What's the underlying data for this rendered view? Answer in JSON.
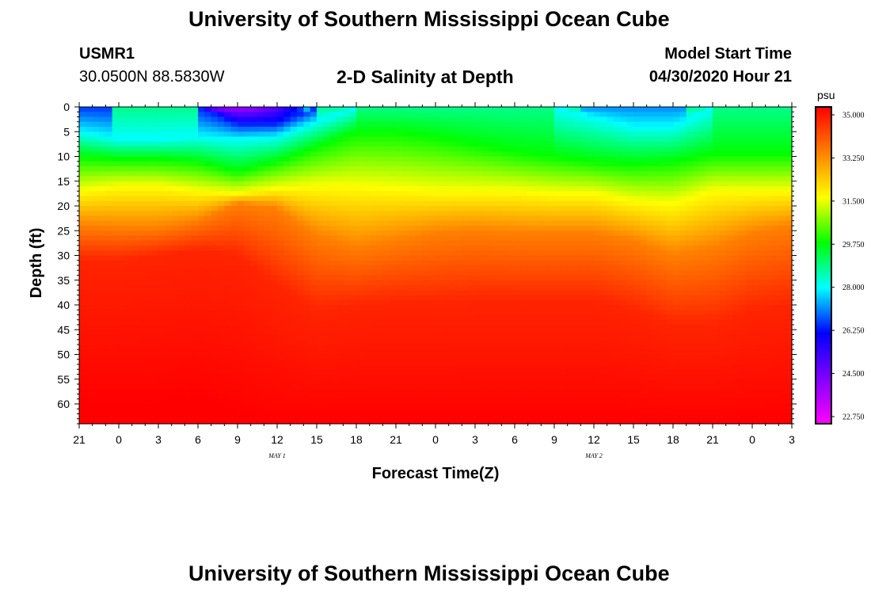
{
  "header": {
    "title": "University of Southern Mississippi Ocean Cube",
    "station": "USMR1",
    "coords": "30.0500N 88.5830W",
    "chart_title": "2-D Salinity at Depth",
    "model_start_label": "Model Start Time",
    "model_start_value": "04/30/2020 Hour 21"
  },
  "footer": {
    "title": "University of Southern Mississippi Ocean Cube"
  },
  "chart_data": {
    "type": "heatmap",
    "title": "2-D Salinity at Depth",
    "xlabel": "Forecast Time(Z)",
    "ylabel": "Depth (ft)",
    "x_ticks": [
      "21",
      "0",
      "3",
      "6",
      "9",
      "12",
      "15",
      "18",
      "21",
      "0",
      "3",
      "6",
      "9",
      "12",
      "15",
      "18",
      "21",
      "0",
      "3"
    ],
    "x_range_hours": [
      0,
      54
    ],
    "date_labels": [
      {
        "label": "MAY 1",
        "hour": 15
      },
      {
        "label": "MAY 2",
        "hour": 39
      }
    ],
    "y_ticks": [
      0,
      5,
      10,
      15,
      20,
      25,
      30,
      35,
      40,
      45,
      50,
      55,
      60
    ],
    "y_range": [
      0,
      64
    ],
    "colorbar": {
      "unit": "psu",
      "min": 22.75,
      "max": 35.0,
      "tick_labels": [
        "35.000",
        "33.250",
        "31.500",
        "29.750",
        "28.000",
        "26.250",
        "24.500",
        "22.750"
      ],
      "colors": [
        "#ff00ff",
        "#8000ff",
        "#0000ff",
        "#00ffff",
        "#00ff00",
        "#ffff00",
        "#ff8000",
        "#ff0000"
      ]
    },
    "isohaline_depth_ft": {
      "hours": [
        0,
        3,
        6,
        9,
        12,
        15,
        18,
        21,
        24,
        27,
        30,
        33,
        36,
        39,
        42,
        45,
        48,
        51,
        54
      ],
      "s26_5": [
        0,
        0,
        0,
        0,
        3.5,
        3.5,
        0,
        0,
        0,
        0,
        0,
        0,
        0,
        0,
        0,
        0,
        0,
        0,
        0
      ],
      "s28_0": [
        5,
        6.5,
        6.5,
        6,
        6.5,
        6,
        3,
        0,
        0,
        0,
        0,
        0,
        0,
        2,
        4,
        4,
        0,
        0,
        0
      ],
      "s29_75": [
        10,
        10.5,
        10.5,
        11,
        13,
        11,
        8,
        5,
        5,
        6,
        7.5,
        9,
        10,
        11,
        11.5,
        11,
        9.5,
        9.5,
        9.5
      ],
      "s31_5": [
        17,
        16,
        16,
        17,
        17.5,
        16.5,
        16,
        16,
        16.5,
        17,
        17,
        17,
        17.5,
        17.5,
        19,
        19.5,
        17,
        17,
        17
      ],
      "s33_25": [
        24,
        24.5,
        24.5,
        23,
        19.5,
        20.5,
        26,
        28.5,
        27,
        25.5,
        25,
        25.5,
        25.5,
        25.5,
        27,
        30,
        28.5,
        25.5,
        24
      ],
      "s34_5": [
        31,
        31,
        30,
        29,
        30,
        36,
        41,
        40,
        39.5,
        39.5,
        39,
        39,
        39,
        39,
        41,
        44,
        44,
        41,
        40
      ],
      "s35_0": [
        60,
        60,
        60,
        59,
        62,
        64,
        64,
        64,
        64,
        64,
        64,
        64,
        64,
        64,
        64,
        64,
        64,
        64,
        64
      ]
    }
  }
}
